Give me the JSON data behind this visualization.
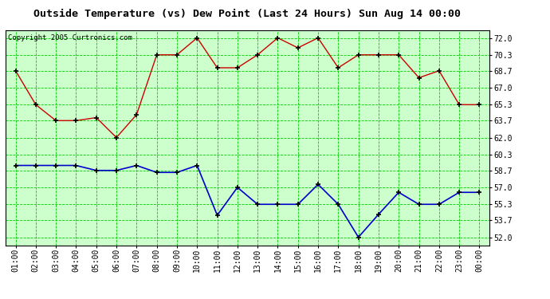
{
  "title": "Outside Temperature (vs) Dew Point (Last 24 Hours) Sun Aug 14 00:00",
  "copyright": "Copyright 2005 Curtronics.com",
  "x_labels": [
    "01:00",
    "02:00",
    "03:00",
    "04:00",
    "05:00",
    "06:00",
    "07:00",
    "08:00",
    "09:00",
    "10:00",
    "11:00",
    "12:00",
    "13:00",
    "14:00",
    "15:00",
    "16:00",
    "17:00",
    "18:00",
    "19:00",
    "20:00",
    "21:00",
    "22:00",
    "23:00",
    "00:00"
  ],
  "temp_data": [
    68.7,
    65.3,
    63.7,
    63.7,
    64.0,
    62.0,
    64.3,
    70.3,
    70.3,
    72.0,
    69.0,
    69.0,
    70.3,
    72.0,
    71.0,
    72.0,
    69.0,
    70.3,
    70.3,
    70.3,
    68.0,
    68.7,
    65.3,
    65.3
  ],
  "dew_data": [
    59.2,
    59.2,
    59.2,
    59.2,
    58.7,
    58.7,
    59.2,
    58.5,
    58.5,
    59.2,
    54.2,
    57.0,
    55.3,
    55.3,
    55.3,
    57.3,
    55.3,
    52.0,
    54.3,
    56.5,
    55.3,
    55.3,
    56.5,
    56.5
  ],
  "temp_color": "#cc0000",
  "dew_color": "#0000cc",
  "bg_color": "#ffffff",
  "plot_bg_color": "#ccffcc",
  "grid_color": "#00cc00",
  "title_fontsize": 9.5,
  "copyright_fontsize": 6.5,
  "tick_fontsize": 7,
  "yticks": [
    52.0,
    53.7,
    55.3,
    57.0,
    58.7,
    60.3,
    62.0,
    63.7,
    65.3,
    67.0,
    68.7,
    70.3,
    72.0
  ],
  "ylim": [
    51.2,
    72.8
  ]
}
